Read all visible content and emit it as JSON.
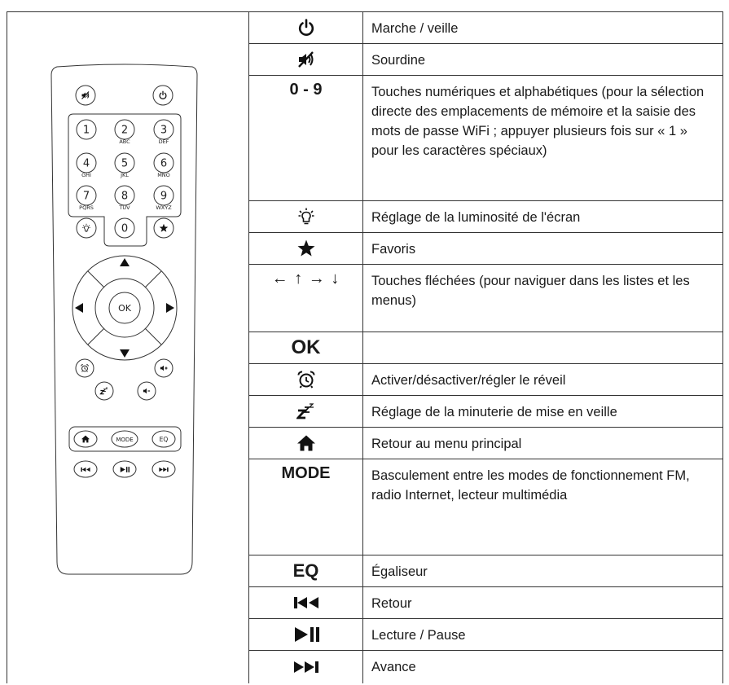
{
  "rows": [
    {
      "description": "Marche / veille"
    },
    {
      "description": "Sourdine"
    },
    {
      "symbol": "0 - 9",
      "description": "Touches numériques et alphabétiques (pour la sélection directe des emplacements de mémoire et la saisie des mots de passe WiFi ; appuyer plusieurs fois sur « 1 » pour les caractères spéciaux)"
    },
    {
      "description": "Réglage de la luminosité de l'écran"
    },
    {
      "description": "Favoris"
    },
    {
      "symbol": "← ↑ → ↓",
      "description": "Touches fléchées (pour naviguer dans les listes et les menus)"
    },
    {
      "symbol": "OK"
    },
    {
      "description": "Activer/désactiver/régler le réveil"
    },
    {
      "description": "Réglage de la minuterie de mise en veille"
    },
    {
      "description": "Retour au menu principal"
    },
    {
      "symbol": "MODE",
      "description": "Basculement entre les modes de fonctionnement FM, radio Internet, lecteur multimédia"
    },
    {
      "symbol": "EQ",
      "description": "Égaliseur"
    },
    {
      "description": "Retour"
    },
    {
      "description": "Lecture / Pause"
    },
    {
      "description": "Avance"
    }
  ],
  "remote": {
    "digits": [
      {
        "label": "1"
      },
      {
        "label": "2",
        "letters": "ABC"
      },
      {
        "label": "3",
        "letters": "DEF"
      },
      {
        "label": "4",
        "letters": "GHI"
      },
      {
        "label": "5",
        "letters": "JKL"
      },
      {
        "label": "6",
        "letters": "MNO"
      },
      {
        "label": "7",
        "letters": "PQRS"
      },
      {
        "label": "8",
        "letters": "TUV"
      },
      {
        "label": "9",
        "letters": "WXYZ"
      },
      {
        "label": "0"
      }
    ],
    "ok": "OK",
    "mode": "MODE",
    "eq": "EQ"
  }
}
